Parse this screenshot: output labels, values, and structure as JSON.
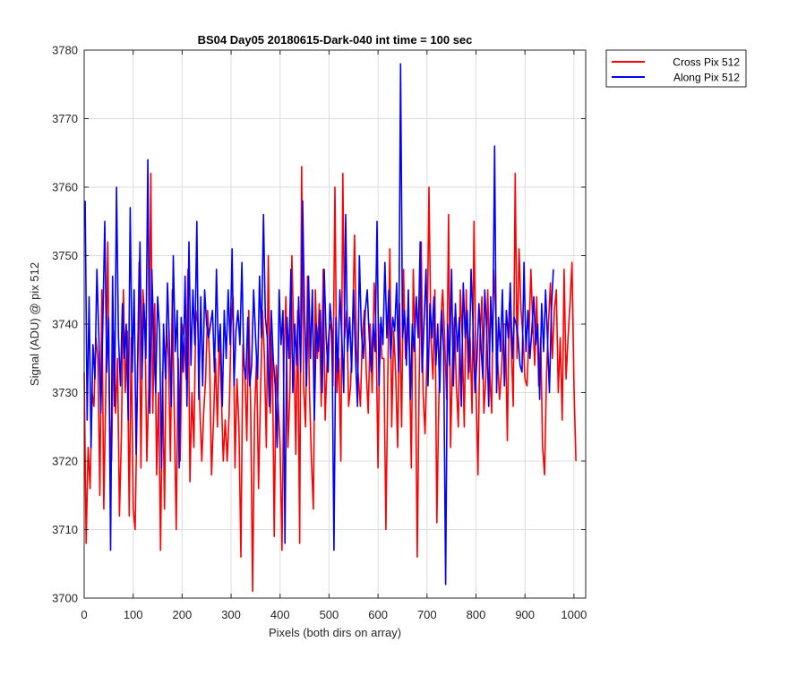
{
  "chart_data": {
    "type": "line",
    "title": "BS04 Day05 20180615-Dark-040 int time = 100 sec",
    "xlabel": "Pixels (both dirs on array)",
    "ylabel": "Signal (ADU) @ pix 512",
    "xlim": [
      0,
      1024
    ],
    "ylim": [
      3700,
      3780
    ],
    "xticks": [
      0,
      100,
      200,
      300,
      400,
      500,
      600,
      700,
      800,
      900,
      1000
    ],
    "yticks": [
      3700,
      3710,
      3720,
      3730,
      3740,
      3750,
      3760,
      3770,
      3780
    ],
    "grid": true,
    "legend_position": "outside top-right",
    "series": [
      {
        "name": "Cross Pix 512",
        "color": "#ff0000",
        "x_start": 0,
        "x_step": 4,
        "values": [
          3733,
          3708,
          3722,
          3716,
          3730,
          3728,
          3738,
          3735,
          3715,
          3745,
          3713,
          3730,
          3752,
          3726,
          3720,
          3739,
          3727,
          3735,
          3712,
          3724,
          3745,
          3730,
          3739,
          3712,
          3738,
          3713,
          3710,
          3728,
          3749,
          3719,
          3745,
          3740,
          3720,
          3731,
          3762,
          3727,
          3743,
          3718,
          3730,
          3707,
          3733,
          3713,
          3740,
          3735,
          3720,
          3745,
          3727,
          3710,
          3735,
          3720,
          3740,
          3738,
          3732,
          3748,
          3717,
          3730,
          3722,
          3742,
          3740,
          3728,
          3720,
          3727,
          3732,
          3742,
          3735,
          3718,
          3726,
          3735,
          3725,
          3738,
          3730,
          3720,
          3726,
          3720,
          3727,
          3740,
          3744,
          3719,
          3732,
          3725,
          3706,
          3737,
          3733,
          3723,
          3742,
          3728,
          3701,
          3727,
          3735,
          3716,
          3730,
          3742,
          3735,
          3722,
          3750,
          3727,
          3738,
          3709,
          3734,
          3728,
          3722,
          3707,
          3735,
          3744,
          3722,
          3730,
          3750,
          3738,
          3721,
          3742,
          3708,
          3763,
          3731,
          3725,
          3747,
          3730,
          3720,
          3713,
          3745,
          3735,
          3743,
          3728,
          3748,
          3726,
          3735,
          3739,
          3740,
          3731,
          3760,
          3730,
          3735,
          3720,
          3762,
          3738,
          3742,
          3728,
          3731,
          3740,
          3753,
          3736,
          3732,
          3728,
          3738,
          3742,
          3733,
          3727,
          3740,
          3730,
          3746,
          3739,
          3719,
          3740,
          3735,
          3735,
          3710,
          3733,
          3751,
          3725,
          3739,
          3733,
          3722,
          3743,
          3725,
          3748,
          3735,
          3741,
          3736,
          3719,
          3748,
          3735,
          3706,
          3732,
          3752,
          3730,
          3724,
          3735,
          3760,
          3738,
          3732,
          3745,
          3711,
          3728,
          3740,
          3745,
          3738,
          3729,
          3756,
          3722,
          3735,
          3741,
          3731,
          3725,
          3745,
          3738,
          3725,
          3745,
          3732,
          3738,
          3727,
          3755,
          3731,
          3718,
          3738,
          3744,
          3727,
          3732,
          3745,
          3733,
          3727,
          3748,
          3742,
          3735,
          3729,
          3733,
          3740,
          3740,
          3723,
          3743,
          3737,
          3728,
          3762,
          3735,
          3751,
          3742,
          3738,
          3732,
          3731,
          3738,
          3748,
          3740,
          3734,
          3744,
          3731,
          3738,
          3722,
          3718,
          3733,
          3740,
          3746,
          3735,
          3742,
          3745,
          3730,
          3738,
          3726,
          3748,
          3732,
          3738,
          3743,
          3749,
          3731,
          3720
        ]
      },
      {
        "name": "Along Pix 512",
        "color": "#0000ff",
        "x_start": 2,
        "x_step": 4,
        "values": [
          3758,
          3726,
          3744,
          3722,
          3737,
          3732,
          3748,
          3738,
          3727,
          3740,
          3755,
          3733,
          3741,
          3707,
          3747,
          3728,
          3760,
          3738,
          3731,
          3743,
          3735,
          3740,
          3726,
          3757,
          3733,
          3745,
          3721,
          3738,
          3752,
          3732,
          3743,
          3735,
          3764,
          3727,
          3748,
          3738,
          3730,
          3744,
          3739,
          3719,
          3740,
          3732,
          3746,
          3737,
          3728,
          3750,
          3736,
          3742,
          3719,
          3741,
          3733,
          3747,
          3728,
          3752,
          3734,
          3745,
          3737,
          3755,
          3729,
          3744,
          3731,
          3745,
          3740,
          3738,
          3740,
          3742,
          3733,
          3748,
          3736,
          3740,
          3728,
          3742,
          3735,
          3745,
          3737,
          3751,
          3731,
          3739,
          3742,
          3737,
          3749,
          3734,
          3732,
          3741,
          3731,
          3734,
          3745,
          3738,
          3732,
          3747,
          3738,
          3756,
          3741,
          3738,
          3728,
          3742,
          3735,
          3731,
          3722,
          3745,
          3737,
          3742,
          3708,
          3741,
          3735,
          3748,
          3730,
          3740,
          3734,
          3744,
          3733,
          3758,
          3741,
          3731,
          3747,
          3735,
          3745,
          3726,
          3740,
          3736,
          3742,
          3730,
          3748,
          3738,
          3733,
          3743,
          3739,
          3707,
          3741,
          3733,
          3745,
          3738,
          3730,
          3756,
          3736,
          3741,
          3733,
          3745,
          3735,
          3728,
          3750,
          3739,
          3735,
          3742,
          3745,
          3738,
          3733,
          3740,
          3736,
          3755,
          3731,
          3741,
          3737,
          3749,
          3738,
          3745,
          3735,
          3741,
          3739,
          3746,
          3733,
          3778,
          3738,
          3742,
          3734,
          3745,
          3729,
          3740,
          3736,
          3744,
          3738,
          3752,
          3733,
          3740,
          3748,
          3731,
          3743,
          3738,
          3744,
          3734,
          3740,
          3730,
          3742,
          3736,
          3702,
          3740,
          3734,
          3748,
          3731,
          3743,
          3736,
          3741,
          3728,
          3746,
          3738,
          3742,
          3733,
          3748,
          3740,
          3730,
          3735,
          3743,
          3737,
          3732,
          3745,
          3739,
          3728,
          3744,
          3736,
          3766,
          3730,
          3741,
          3736,
          3745,
          3731,
          3742,
          3738,
          3746,
          3735,
          3741,
          3740,
          3738,
          3734,
          3733,
          3749,
          3736,
          3742,
          3735,
          3739,
          3744,
          3737,
          3740,
          3729,
          3743,
          3736,
          3745,
          3738,
          3730,
          3742,
          3748
        ]
      }
    ]
  }
}
